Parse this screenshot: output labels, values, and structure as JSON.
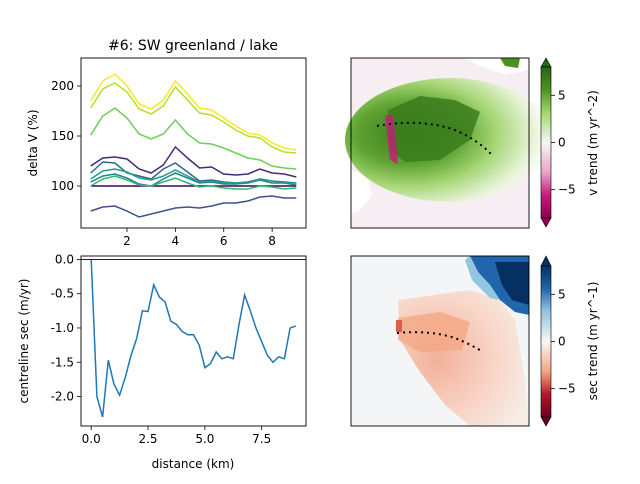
{
  "chart_data": [
    {
      "type": "line",
      "title": "#6: SW greenland / lake",
      "ylabel": "delta V (%)",
      "xlabel": "",
      "xlim": [
        0.1,
        9.4
      ],
      "ylim": [
        58,
        228
      ],
      "xticks": [
        "2",
        "4",
        "6",
        "8"
      ],
      "yticks": [
        "100",
        "150",
        "200"
      ],
      "x": [
        0.5,
        1.0,
        1.5,
        2.0,
        2.5,
        3.0,
        3.5,
        4.0,
        4.5,
        5.0,
        5.5,
        6.0,
        6.5,
        7.0,
        7.5,
        8.0,
        8.5,
        9.0
      ],
      "series": [
        {
          "color": "#440154",
          "values": [
            100,
            100,
            100,
            100,
            100,
            100,
            100,
            100,
            100,
            100,
            100,
            100,
            100,
            100,
            100,
            100,
            100,
            100
          ]
        },
        {
          "color": "#3b528b",
          "values": [
            75,
            79,
            80,
            75,
            69,
            72,
            75,
            78,
            79,
            78,
            80,
            83,
            83,
            85,
            89,
            90,
            88,
            88
          ]
        },
        {
          "color": "#482878",
          "values": [
            120,
            128,
            129,
            127,
            117,
            113,
            121,
            139,
            128,
            118,
            119,
            112,
            111,
            112,
            117,
            113,
            112,
            109
          ]
        },
        {
          "color": "#31688e",
          "values": [
            113,
            124,
            123,
            113,
            110,
            107,
            117,
            123,
            114,
            105,
            106,
            104,
            103,
            104,
            107,
            105,
            104,
            103
          ]
        },
        {
          "color": "#26828e",
          "values": [
            104,
            110,
            112,
            108,
            102,
            100,
            107,
            113,
            108,
            103,
            104,
            102,
            102,
            103,
            106,
            103,
            103,
            101
          ]
        },
        {
          "color": "#1f9e89",
          "values": [
            107,
            115,
            117,
            114,
            108,
            106,
            110,
            116,
            110,
            104,
            105,
            103,
            103,
            103,
            107,
            105,
            103,
            103
          ]
        },
        {
          "color": "#35b779",
          "values": [
            100,
            107,
            110,
            106,
            101,
            100,
            104,
            108,
            103,
            99,
            100,
            98,
            97,
            97,
            100,
            99,
            97,
            98
          ]
        },
        {
          "color": "#6ece58",
          "values": [
            151,
            170,
            178,
            168,
            152,
            147,
            152,
            166,
            152,
            143,
            142,
            138,
            133,
            128,
            126,
            120,
            118,
            117
          ]
        },
        {
          "color": "#b5de2b",
          "values": [
            178,
            197,
            203,
            194,
            177,
            172,
            180,
            199,
            186,
            173,
            171,
            164,
            156,
            150,
            148,
            139,
            134,
            133
          ]
        },
        {
          "color": "#fde725",
          "values": [
            185,
            205,
            212,
            200,
            182,
            177,
            186,
            205,
            192,
            178,
            176,
            168,
            160,
            153,
            151,
            143,
            138,
            136
          ]
        }
      ]
    },
    {
      "type": "line",
      "title": "",
      "xlabel": "distance (km)",
      "ylabel": "centreline sec (m/yr)",
      "xlim": [
        -0.45,
        9.45
      ],
      "ylim": [
        -2.43,
        0.05
      ],
      "xticks": [
        "0.0",
        "2.5",
        "5.0",
        "7.5"
      ],
      "yticks": [
        "0.0",
        "-0.5",
        "-1.0",
        "-1.5",
        "-2.0"
      ],
      "series": [
        {
          "color": "#1f77b4",
          "x": [
            0.0,
            0.25,
            0.5,
            0.75,
            1.0,
            1.25,
            1.5,
            1.75,
            2.0,
            2.25,
            2.5,
            2.75,
            3.0,
            3.25,
            3.5,
            3.75,
            4.0,
            4.25,
            4.5,
            4.75,
            5.0,
            5.25,
            5.5,
            5.75,
            6.0,
            6.25,
            6.5,
            6.75,
            7.0,
            7.25,
            7.5,
            7.75,
            8.0,
            8.25,
            8.5,
            8.75,
            9.0
          ],
          "y": [
            0.0,
            -2.0,
            -2.3,
            -1.47,
            -1.82,
            -1.98,
            -1.72,
            -1.4,
            -1.15,
            -0.75,
            -0.76,
            -0.37,
            -0.55,
            -0.62,
            -0.9,
            -0.95,
            -1.05,
            -1.1,
            -1.1,
            -1.25,
            -1.58,
            -1.52,
            -1.35,
            -1.45,
            -1.42,
            -1.45,
            -0.95,
            -0.52,
            -0.75,
            -1.0,
            -1.2,
            -1.4,
            -1.5,
            -1.42,
            -1.45,
            -1.0,
            -0.97
          ]
        }
      ],
      "zero_line": true
    }
  ],
  "maps": [
    {
      "type": "heatmap",
      "colorbar_label": "v trend (m yr^-2)",
      "colormap": "PiYG",
      "clim": [
        -8,
        8
      ],
      "colorbar_ticks": [
        "5",
        "0",
        "−5"
      ]
    },
    {
      "type": "heatmap",
      "colorbar_label": "sec trend (m yr^-1)",
      "colormap": "RdBu",
      "clim": [
        -8,
        8
      ],
      "colorbar_ticks": [
        "5",
        "0",
        "−5"
      ]
    }
  ]
}
